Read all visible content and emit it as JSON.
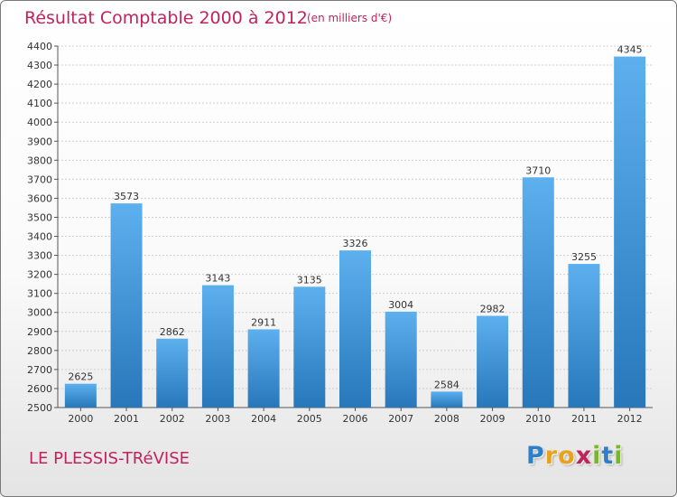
{
  "chart_data": {
    "type": "bar",
    "title": "Résultat Comptable 2000 à 2012",
    "subtitle": "(en milliers d'€)",
    "categories": [
      "2000",
      "2001",
      "2002",
      "2003",
      "2004",
      "2005",
      "2006",
      "2007",
      "2008",
      "2009",
      "2010",
      "2011",
      "2012"
    ],
    "values": [
      2625,
      3573,
      2862,
      3143,
      2911,
      3135,
      3326,
      3004,
      2584,
      2982,
      3710,
      3255,
      4345
    ],
    "ylim": [
      2500,
      4400
    ],
    "yticks": [
      2500,
      2600,
      2700,
      2800,
      2900,
      3000,
      3100,
      3200,
      3300,
      3400,
      3500,
      3600,
      3700,
      3800,
      3900,
      4000,
      4100,
      4200,
      4300,
      4400
    ],
    "xlabel": "",
    "ylabel": "",
    "grid": true,
    "bar_color": "#3d95d6"
  },
  "location": "LE PLESSIS-TRéVISE",
  "brand": {
    "letters": [
      "P",
      "r",
      "o",
      "x",
      "i",
      "t",
      "i"
    ],
    "colors": [
      "#2e7fc8",
      "#e8a21f",
      "#e8a21f",
      "#c0235c",
      "#7ab52e",
      "#2e7fc8",
      "#7ab52e"
    ]
  }
}
